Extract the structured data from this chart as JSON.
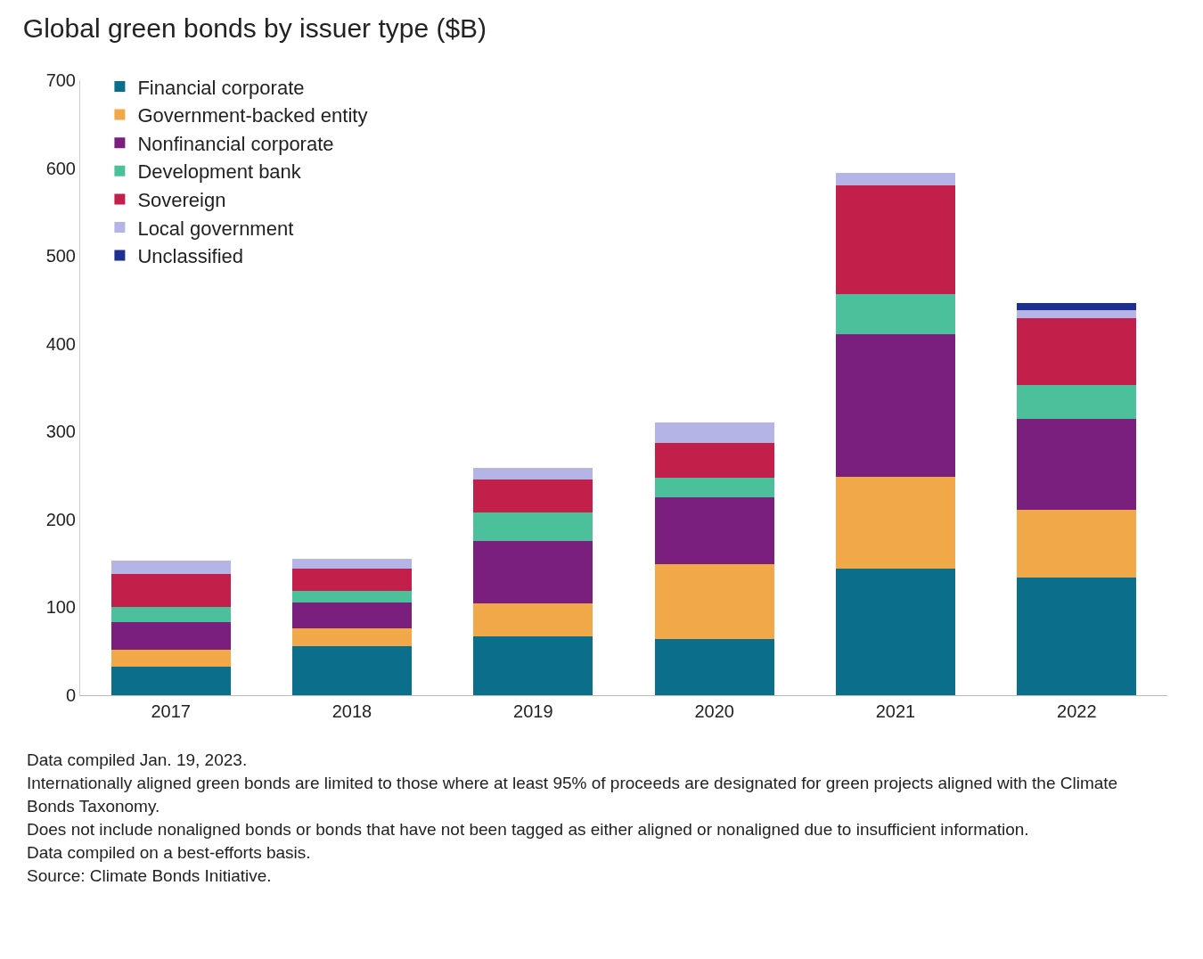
{
  "chart_data": {
    "type": "bar",
    "title": "Global green bonds by issuer type ($B)",
    "stacked": true,
    "categories": [
      "2017",
      "2018",
      "2019",
      "2020",
      "2021",
      "2022"
    ],
    "series": [
      {
        "name": "Financial corporate",
        "color": "#0b6e8a",
        "values": [
          32,
          56,
          67,
          64,
          144,
          134
        ]
      },
      {
        "name": "Government-backed entity",
        "color": "#f0a848",
        "values": [
          20,
          20,
          37,
          85,
          105,
          77
        ]
      },
      {
        "name": "Nonfinancial corporate",
        "color": "#7b1f7f",
        "values": [
          31,
          30,
          72,
          76,
          162,
          103
        ]
      },
      {
        "name": "Development bank",
        "color": "#4cbf9b",
        "values": [
          17,
          13,
          32,
          23,
          46,
          39
        ]
      },
      {
        "name": "Sovereign",
        "color": "#c21f4b",
        "values": [
          38,
          25,
          38,
          39,
          123,
          76
        ]
      },
      {
        "name": "Local government",
        "color": "#b4b4e6",
        "values": [
          15,
          11,
          13,
          23,
          15,
          9
        ]
      },
      {
        "name": "Unclassified",
        "color": "#1f2f8f",
        "values": [
          0,
          0,
          0,
          0,
          0,
          8
        ]
      }
    ],
    "ylim": [
      0,
      700
    ],
    "yticks": [
      0,
      100,
      200,
      300,
      400,
      500,
      600,
      700
    ],
    "grid": false,
    "legend": "top left",
    "annotations": [
      "Data compiled Jan. 19, 2023.",
      "Internationally aligned green bonds are limited to those where at least 95% of proceeds are designated for green projects aligned with the Climate Bonds Taxonomy.",
      "Does not include nonaligned bonds or bonds that have not been tagged as either aligned or nonaligned due to insufficient information.",
      "Data compiled on a best-efforts basis.",
      "Source: Climate Bonds Initiative."
    ]
  }
}
